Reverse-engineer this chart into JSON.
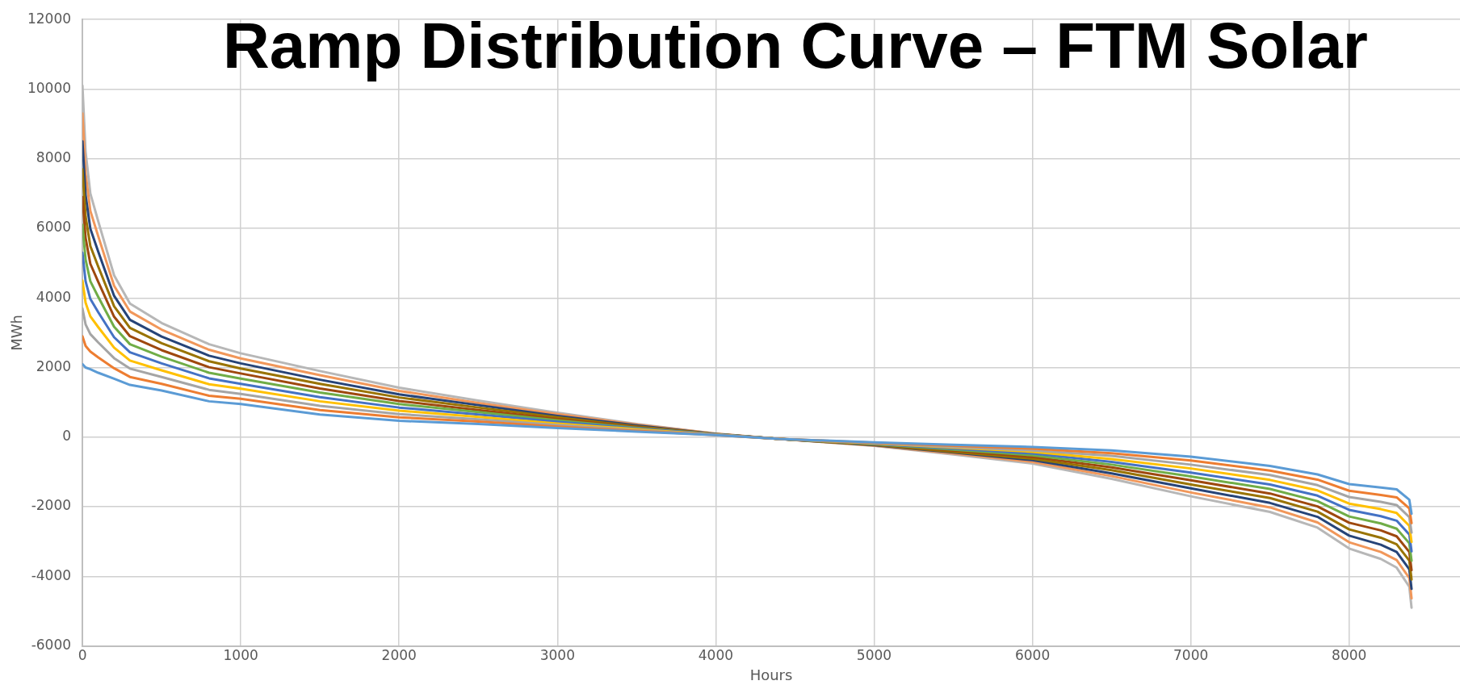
{
  "chart_data": {
    "type": "line",
    "title": "Ramp Distribution Curve – FTM Solar",
    "xlabel": "Hours",
    "ylabel": "MWh",
    "x": [
      0,
      20,
      50,
      100,
      200,
      300,
      500,
      800,
      1000,
      1500,
      2000,
      2500,
      3000,
      3500,
      4000,
      4400,
      5000,
      5500,
      6000,
      6500,
      7000,
      7500,
      7800,
      8000,
      8200,
      8300,
      8380,
      8394
    ],
    "xlim": [
      0,
      8700
    ],
    "xticks": [
      0,
      1000,
      2000,
      3000,
      4000,
      5000,
      6000,
      7000,
      8000
    ],
    "ylim": [
      -6000,
      12000
    ],
    "yticks": [
      -6000,
      -4000,
      -2000,
      0,
      2000,
      4000,
      6000,
      8000,
      10000,
      12000
    ],
    "grid": true,
    "legend": false,
    "marker": "none",
    "line_style": "solid",
    "series": [
      {
        "color": "#5b9bd5",
        "values": [
          2100,
          2000,
          1950,
          1850,
          1680,
          1500,
          1340,
          1030,
          950,
          650,
          470,
          380,
          260,
          160,
          60,
          -50,
          -150,
          -220,
          -280,
          -380,
          -560,
          -830,
          -1070,
          -1350,
          -1450,
          -1500,
          -1800,
          -2200
        ]
      },
      {
        "color": "#ed7d31",
        "values": [
          2900,
          2620,
          2460,
          2290,
          1980,
          1730,
          1530,
          1190,
          1100,
          780,
          570,
          450,
          300,
          180,
          60,
          -50,
          -160,
          -250,
          -330,
          -460,
          -670,
          -960,
          -1220,
          -1540,
          -1660,
          -1730,
          -2050,
          -2470
        ]
      },
      {
        "color": "#a5a5a5",
        "values": [
          3700,
          3240,
          2960,
          2720,
          2270,
          1970,
          1730,
          1360,
          1240,
          900,
          660,
          510,
          350,
          200,
          70,
          -50,
          -170,
          -280,
          -380,
          -540,
          -790,
          -1090,
          -1380,
          -1720,
          -1860,
          -1950,
          -2300,
          -2740
        ]
      },
      {
        "color": "#ffc000",
        "values": [
          4500,
          3860,
          3470,
          3160,
          2570,
          2200,
          1920,
          1520,
          1390,
          1030,
          760,
          580,
          390,
          230,
          70,
          -50,
          -180,
          -300,
          -420,
          -630,
          -900,
          -1230,
          -1530,
          -1910,
          -2070,
          -2180,
          -2550,
          -3010
        ]
      },
      {
        "color": "#4472c4",
        "values": [
          5300,
          4480,
          3970,
          3590,
          2870,
          2440,
          2120,
          1690,
          1530,
          1150,
          850,
          650,
          440,
          250,
          80,
          -50,
          -190,
          -330,
          -470,
          -710,
          -1020,
          -1360,
          -1680,
          -2090,
          -2270,
          -2400,
          -2800,
          -3280
        ]
      },
      {
        "color": "#70ad47",
        "values": [
          6100,
          5100,
          4480,
          4030,
          3170,
          2670,
          2310,
          1850,
          1680,
          1280,
          950,
          720,
          480,
          270,
          80,
          -50,
          -200,
          -360,
          -520,
          -790,
          -1130,
          -1490,
          -1840,
          -2280,
          -2480,
          -2630,
          -3050,
          -3550
        ]
      },
      {
        "color": "#9e480e",
        "values": [
          6900,
          5720,
          4980,
          4460,
          3460,
          2900,
          2500,
          2010,
          1830,
          1400,
          1040,
          780,
          520,
          290,
          80,
          -50,
          -210,
          -390,
          -570,
          -870,
          -1240,
          -1620,
          -1990,
          -2460,
          -2680,
          -2850,
          -3300,
          -3820
        ]
      },
      {
        "color": "#997300",
        "values": [
          7700,
          6340,
          5490,
          4900,
          3760,
          3140,
          2700,
          2180,
          1970,
          1530,
          1140,
          850,
          570,
          310,
          90,
          -50,
          -220,
          -420,
          -620,
          -950,
          -1360,
          -1750,
          -2140,
          -2650,
          -2890,
          -3080,
          -3550,
          -4090
        ]
      },
      {
        "color": "#264478",
        "values": [
          8500,
          6960,
          5990,
          5330,
          4060,
          3370,
          2890,
          2340,
          2120,
          1650,
          1230,
          920,
          610,
          340,
          90,
          -50,
          -230,
          -440,
          -660,
          -1040,
          -1470,
          -1890,
          -2290,
          -2830,
          -3090,
          -3300,
          -3800,
          -4360
        ]
      },
      {
        "color": "#f1975a",
        "values": [
          9300,
          7580,
          6500,
          5770,
          4350,
          3610,
          3090,
          2510,
          2260,
          1780,
          1330,
          980,
          660,
          360,
          100,
          -50,
          -240,
          -470,
          -710,
          -1120,
          -1590,
          -2020,
          -2450,
          -3020,
          -3300,
          -3530,
          -4050,
          -4630
        ]
      },
      {
        "color": "#b7b7b7",
        "values": [
          10100,
          8200,
          7000,
          6200,
          4650,
          3840,
          3280,
          2670,
          2410,
          1900,
          1420,
          1050,
          700,
          380,
          100,
          -50,
          -250,
          -500,
          -760,
          -1200,
          -1700,
          -2150,
          -2600,
          -3200,
          -3500,
          -3750,
          -4300,
          -4900
        ]
      }
    ]
  }
}
